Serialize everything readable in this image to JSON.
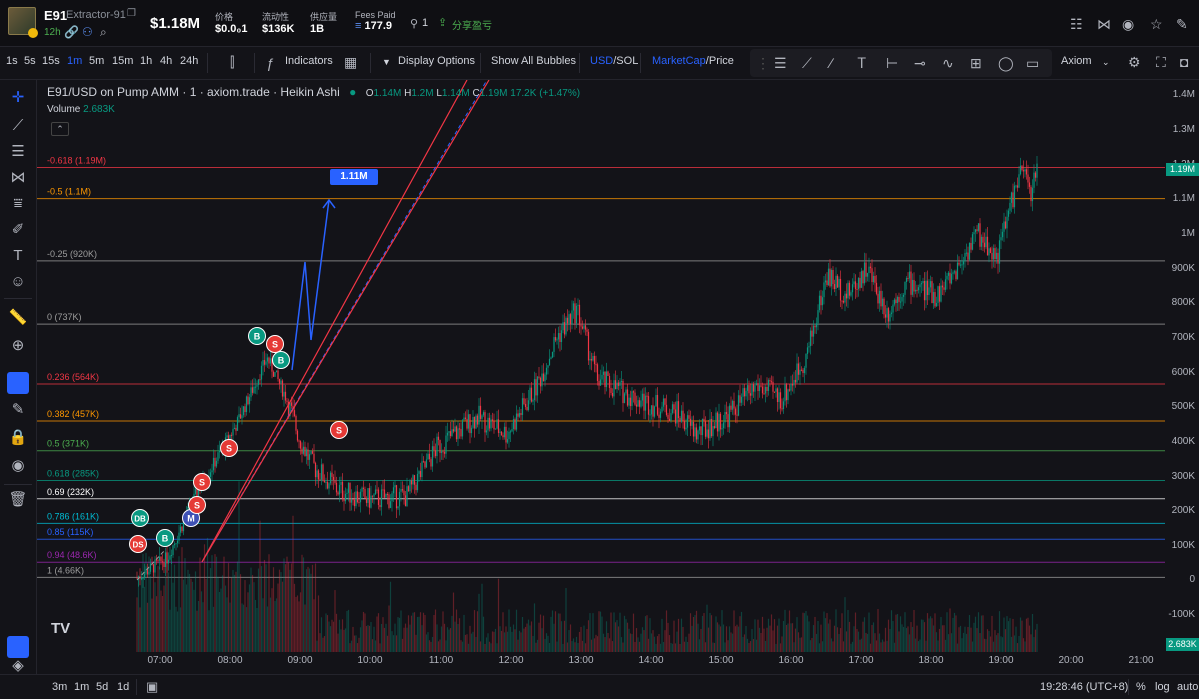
{
  "header": {
    "symbol": "E91",
    "name": "Extractor-91",
    "age": "12h",
    "price": "$1.18M",
    "stats": [
      {
        "label": "价格",
        "value": "$0.0₀1"
      },
      {
        "label": "流动性",
        "value": "$136K"
      },
      {
        "label": "供应量",
        "value": "1B"
      },
      {
        "label": "Fees Paid",
        "value": "177.9"
      }
    ],
    "holders_count": "1",
    "share_label": "分享盈亏"
  },
  "toolbar": {
    "intervals": [
      "1s",
      "5s",
      "15s",
      "1m",
      "5m",
      "15m",
      "1h",
      "4h",
      "24h"
    ],
    "active_interval": "1m",
    "indicators_label": "Indicators",
    "display_options_label": "Display Options",
    "show_bubbles_label": "Show All Bubbles",
    "currency_usd": "USD",
    "currency_sol": "SOL",
    "metric_mc": "MarketCap",
    "metric_price": "Price",
    "provider": "Axiom"
  },
  "legend": {
    "title": "E91/USD on Pump AMM · 1 · axiom.trade · Heikin Ashi",
    "o_label": "O",
    "o": "1.14M",
    "h_label": "H",
    "h": "1.2M",
    "l_label": "L",
    "l": "1.14M",
    "c_label": "C",
    "c": "1.19M",
    "change": "17.2K (+1.47%)",
    "volume_label": "Volume",
    "volume": "2.683K"
  },
  "fib_levels": [
    {
      "label": "-0.618 (1.19M)",
      "value": 1190000,
      "color": "#f23645"
    },
    {
      "label": "-0.5 (1.1M)",
      "value": 1100000,
      "color": "#ff9800"
    },
    {
      "label": "-0.25 (920K)",
      "value": 920000,
      "color": "#9e9e9e"
    },
    {
      "label": "0 (737K)",
      "value": 737000,
      "color": "#9e9e9e"
    },
    {
      "label": "0.236 (564K)",
      "value": 564000,
      "color": "#f23645"
    },
    {
      "label": "0.382 (457K)",
      "value": 457000,
      "color": "#ff9800"
    },
    {
      "label": "0.5 (371K)",
      "value": 371000,
      "color": "#4caf50"
    },
    {
      "label": "0.618 (285K)",
      "value": 285000,
      "color": "#089981"
    },
    {
      "label": "0.69 (232K)",
      "value": 232000,
      "color": "#ffffff"
    },
    {
      "label": "0.786 (161K)",
      "value": 161000,
      "color": "#00bcd4"
    },
    {
      "label": "0.85 (115K)",
      "value": 115000,
      "color": "#2962ff"
    },
    {
      "label": "0.94 (48.6K)",
      "value": 48600,
      "color": "#9c27b0"
    },
    {
      "label": "1 (4.66K)",
      "value": 4660,
      "color": "#9e9e9e"
    }
  ],
  "price_axis": {
    "ticks": [
      "1.4M",
      "1.3M",
      "1.2M",
      "1.1M",
      "1M",
      "900K",
      "800K",
      "700K",
      "600K",
      "500K",
      "400K",
      "300K",
      "200K",
      "100K",
      "0",
      "-100K"
    ],
    "current_price": "1.19M",
    "current_volume": "2.683K"
  },
  "time_axis": {
    "ticks": [
      "07:00",
      "08:00",
      "09:00",
      "10:00",
      "11:00",
      "12:00",
      "13:00",
      "14:00",
      "15:00",
      "16:00",
      "17:00",
      "18:00",
      "19:00",
      "20:00",
      "21:00"
    ]
  },
  "projection_label": "1.11M",
  "markers": [
    {
      "text": "DB",
      "kind": "buy"
    },
    {
      "text": "DS",
      "kind": "sell"
    },
    {
      "text": "B",
      "kind": "buy"
    },
    {
      "text": "M",
      "kind": "migrate"
    },
    {
      "text": "S",
      "kind": "sell"
    },
    {
      "text": "S",
      "kind": "sell"
    },
    {
      "text": "S",
      "kind": "sell"
    },
    {
      "text": "B",
      "kind": "buy"
    },
    {
      "text": "S",
      "kind": "sell"
    },
    {
      "text": "B",
      "kind": "buy"
    },
    {
      "text": "S",
      "kind": "sell"
    }
  ],
  "bottom": {
    "ranges": [
      "3m",
      "1m",
      "5d",
      "1d"
    ],
    "clock": "19:28:46 (UTC+8)",
    "percent": "%",
    "log": "log",
    "auto": "auto"
  },
  "colors": {
    "up": "#089981",
    "down": "#f23645",
    "accent": "#2962ff",
    "background": "#131318"
  }
}
